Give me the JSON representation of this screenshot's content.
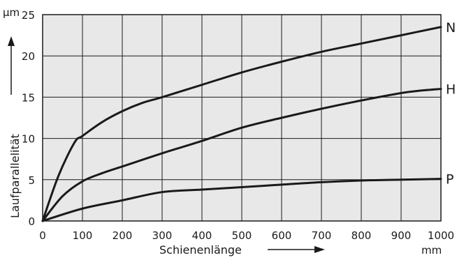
{
  "chart_data": {
    "type": "line",
    "xlabel": "Schienenlänge",
    "ylabel": "Laufparallelität",
    "xunit": "mm",
    "yunit": "µm",
    "xlim": [
      0,
      1000
    ],
    "ylim": [
      0,
      25
    ],
    "xticks": [
      0,
      100,
      200,
      300,
      400,
      500,
      600,
      700,
      800,
      900,
      1000
    ],
    "yticks": [
      0,
      5,
      10,
      15,
      20,
      25
    ],
    "grid": true,
    "series": [
      {
        "name": "N",
        "x": [
          0,
          40,
          80,
          100,
          150,
          200,
          250,
          300,
          400,
          500,
          600,
          700,
          800,
          900,
          1000
        ],
        "y": [
          0,
          5.5,
          9.5,
          10.3,
          12.0,
          13.3,
          14.3,
          15.0,
          16.5,
          18.0,
          19.3,
          20.5,
          21.5,
          22.5,
          23.5
        ]
      },
      {
        "name": "H",
        "x": [
          0,
          50,
          100,
          150,
          200,
          300,
          400,
          500,
          600,
          700,
          800,
          900,
          950,
          1000
        ],
        "y": [
          0,
          3.0,
          4.8,
          5.8,
          6.6,
          8.2,
          9.7,
          11.3,
          12.5,
          13.6,
          14.6,
          15.5,
          15.8,
          16.0
        ]
      },
      {
        "name": "P",
        "x": [
          0,
          100,
          200,
          300,
          400,
          500,
          600,
          700,
          800,
          900,
          1000
        ],
        "y": [
          0,
          1.5,
          2.5,
          3.5,
          3.8,
          4.1,
          4.4,
          4.7,
          4.9,
          5.0,
          5.1
        ]
      }
    ]
  },
  "colors": {
    "plot_background": "#e8e8e8",
    "grid": "#1a1a1a",
    "line": "#1a1a1a"
  }
}
